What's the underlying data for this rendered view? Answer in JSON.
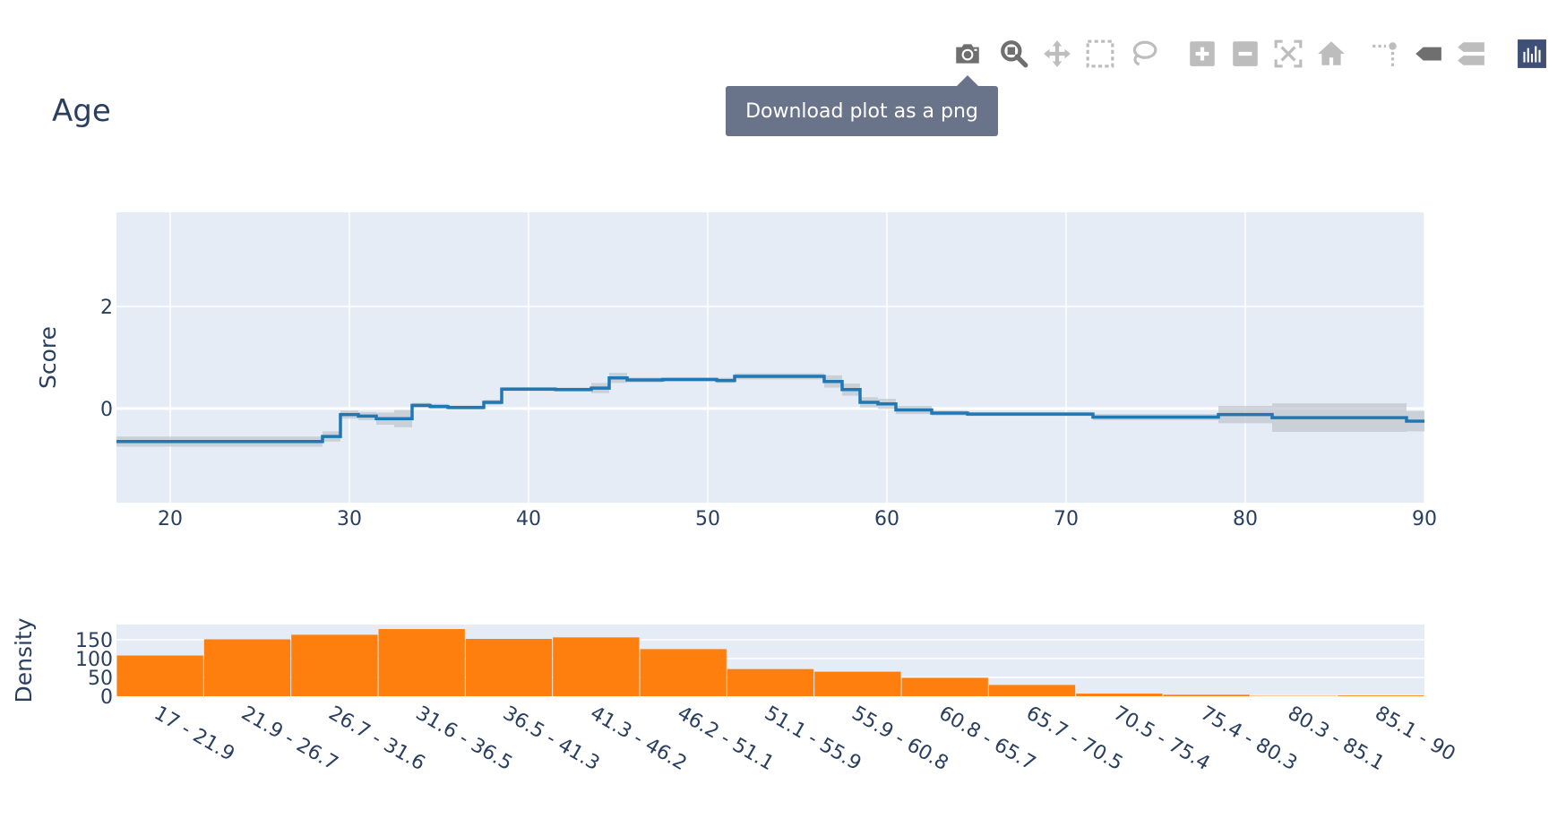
{
  "modebar": {
    "buttons": [
      {
        "name": "camera-icon",
        "title": "Download plot as a png"
      },
      {
        "name": "zoom-icon",
        "title": "Zoom"
      },
      {
        "name": "pan-icon",
        "title": "Pan"
      },
      {
        "name": "box-select-icon",
        "title": "Box Select"
      },
      {
        "name": "lasso-select-icon",
        "title": "Lasso Select"
      },
      {
        "name": "zoom-in-icon",
        "title": "Zoom in"
      },
      {
        "name": "zoom-out-icon",
        "title": "Zoom out"
      },
      {
        "name": "autoscale-icon",
        "title": "Autoscale"
      },
      {
        "name": "reset-axes-icon",
        "title": "Reset axes"
      },
      {
        "name": "spike-lines-icon",
        "title": "Toggle Spike Lines"
      },
      {
        "name": "hover-closest-icon",
        "title": "Show closest data on hover"
      },
      {
        "name": "hover-compare-icon",
        "title": "Compare data on hover"
      },
      {
        "name": "plotly-logo-icon",
        "title": "Produced with Plotly"
      }
    ]
  },
  "tooltip": {
    "text": "Download plot as a png"
  },
  "colors": {
    "line": "#1f77b4",
    "bar": "#ff7f0e",
    "plot_bg": "#e5ecf6",
    "band": "#bfc4cc",
    "text": "#2a3f5f",
    "modebar_icon": "#bdbdbd",
    "modebar_active": "#6f6f6f"
  },
  "chart_data": [
    {
      "type": "line",
      "shape": "step",
      "title": "Age",
      "xlabel": "",
      "ylabel": "Score",
      "xlim": [
        17,
        90
      ],
      "ylim": [
        -1.85,
        3.85
      ],
      "xticks": [
        20,
        30,
        40,
        50,
        60,
        70,
        80,
        90
      ],
      "yticks": [
        0,
        2
      ],
      "grid": true,
      "legend": "none",
      "steps": [
        {
          "x0": 17,
          "x1": 28.5,
          "y": -0.65,
          "err": 0.1
        },
        {
          "x0": 28.5,
          "x1": 29.5,
          "y": -0.55,
          "err": 0.1
        },
        {
          "x0": 29.5,
          "x1": 30.5,
          "y": -0.12,
          "err": 0.08
        },
        {
          "x0": 30.5,
          "x1": 31.5,
          "y": -0.15,
          "err": 0.08
        },
        {
          "x0": 31.5,
          "x1": 32.5,
          "y": -0.2,
          "err": 0.12
        },
        {
          "x0": 32.5,
          "x1": 33.5,
          "y": -0.2,
          "err": 0.17
        },
        {
          "x0": 33.5,
          "x1": 34.5,
          "y": 0.06,
          "err": 0.05
        },
        {
          "x0": 34.5,
          "x1": 35.5,
          "y": 0.04,
          "err": 0.05
        },
        {
          "x0": 35.5,
          "x1": 37.5,
          "y": 0.02,
          "err": 0.04
        },
        {
          "x0": 37.5,
          "x1": 38.5,
          "y": 0.12,
          "err": 0.05
        },
        {
          "x0": 38.5,
          "x1": 41.5,
          "y": 0.38,
          "err": 0.04
        },
        {
          "x0": 41.5,
          "x1": 43.5,
          "y": 0.37,
          "err": 0.04
        },
        {
          "x0": 43.5,
          "x1": 44.5,
          "y": 0.4,
          "err": 0.1
        },
        {
          "x0": 44.5,
          "x1": 45.5,
          "y": 0.6,
          "err": 0.1
        },
        {
          "x0": 45.5,
          "x1": 47.5,
          "y": 0.56,
          "err": 0.05
        },
        {
          "x0": 47.5,
          "x1": 50.5,
          "y": 0.57,
          "err": 0.04
        },
        {
          "x0": 50.5,
          "x1": 51.5,
          "y": 0.55,
          "err": 0.05
        },
        {
          "x0": 51.5,
          "x1": 56.5,
          "y": 0.63,
          "err": 0.06
        },
        {
          "x0": 56.5,
          "x1": 57.5,
          "y": 0.53,
          "err": 0.12
        },
        {
          "x0": 57.5,
          "x1": 58.5,
          "y": 0.37,
          "err": 0.12
        },
        {
          "x0": 58.5,
          "x1": 59.5,
          "y": 0.12,
          "err": 0.1
        },
        {
          "x0": 59.5,
          "x1": 60.5,
          "y": 0.09,
          "err": 0.1
        },
        {
          "x0": 60.5,
          "x1": 62.5,
          "y": -0.03,
          "err": 0.08
        },
        {
          "x0": 62.5,
          "x1": 64.5,
          "y": -0.09,
          "err": 0.05
        },
        {
          "x0": 64.5,
          "x1": 71.5,
          "y": -0.11,
          "err": 0.04
        },
        {
          "x0": 71.5,
          "x1": 78.5,
          "y": -0.17,
          "err": 0.06
        },
        {
          "x0": 78.5,
          "x1": 81.5,
          "y": -0.12,
          "err": 0.17
        },
        {
          "x0": 81.5,
          "x1": 89,
          "y": -0.18,
          "err": 0.28
        },
        {
          "x0": 89,
          "x1": 90,
          "y": -0.25,
          "err": 0.2
        }
      ]
    },
    {
      "type": "bar",
      "title": "",
      "xlabel": "",
      "ylabel": "Density",
      "ylim": [
        0,
        190
      ],
      "yticks": [
        0,
        50,
        100,
        150
      ],
      "grid": true,
      "categories": [
        "17 - 21.9",
        "21.9 - 26.7",
        "26.7 - 31.6",
        "31.6 - 36.5",
        "36.5 - 41.3",
        "41.3 - 46.2",
        "46.2 - 51.1",
        "51.1 - 55.9",
        "55.9 - 60.8",
        "60.8 - 65.7",
        "65.7 - 70.5",
        "70.5 - 75.4",
        "75.4 - 80.3",
        "80.3 - 85.1",
        "85.1 - 90"
      ],
      "values": [
        108,
        151,
        163,
        178,
        152,
        156,
        125,
        72,
        65,
        49,
        30,
        7,
        4,
        1,
        2
      ]
    }
  ]
}
